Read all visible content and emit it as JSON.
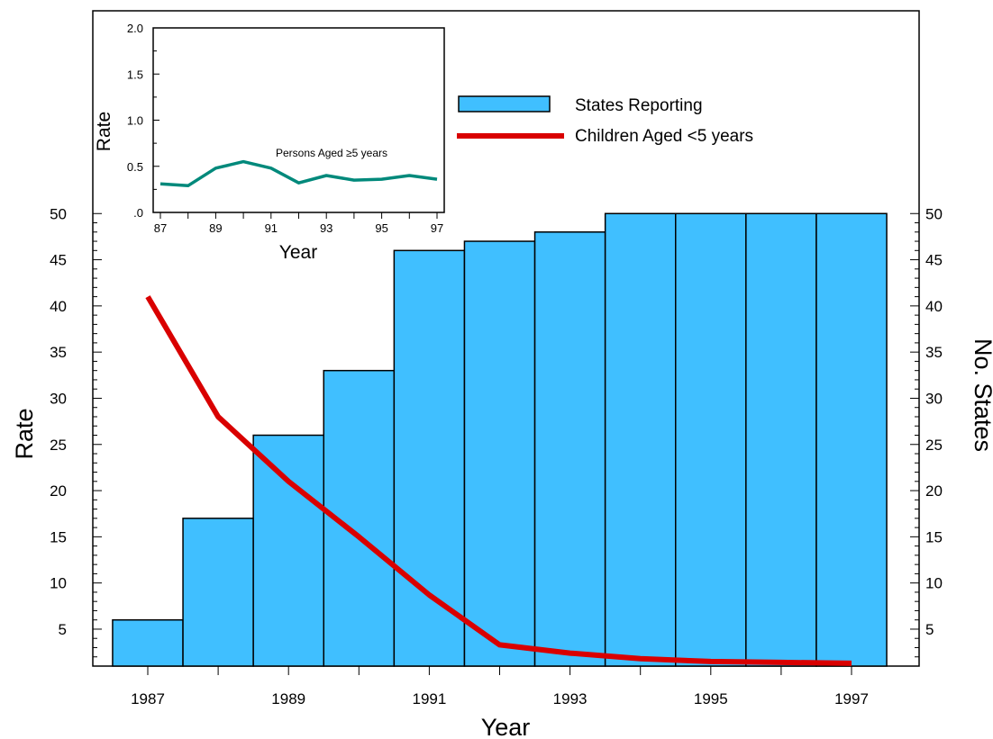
{
  "chart_data": [
    {
      "type": "bar",
      "x": [
        1987,
        1988,
        1989,
        1990,
        1991,
        1992,
        1993,
        1994,
        1995,
        1996,
        1997
      ],
      "xticks": [
        1987,
        1989,
        1991,
        1993,
        1995,
        1997
      ],
      "xtick_labels": [
        "1987",
        "1989",
        "1991",
        "1993",
        "1995",
        "1997"
      ],
      "xlabel": "Year",
      "ylabel_left": "Rate",
      "ylabel_right": "No. States",
      "ylim": [
        1,
        51
      ],
      "yticks": [
        5,
        10,
        15,
        20,
        25,
        30,
        35,
        40,
        45,
        50
      ],
      "ytick_labels": [
        "5",
        "10",
        "15",
        "20",
        "25",
        "30",
        "35",
        "40",
        "45",
        "50"
      ],
      "grid": false,
      "legend_position": "top-right",
      "series": [
        {
          "name": "States Reporting",
          "kind": "bar",
          "axis": "right",
          "color": "#40bfff",
          "values": [
            6,
            17,
            26,
            33,
            46,
            47,
            48,
            50,
            50,
            50,
            50
          ]
        },
        {
          "name": "Children Aged <5 years",
          "kind": "line",
          "axis": "left",
          "color": "#d90000",
          "values": [
            41,
            28,
            21,
            15,
            8.7,
            3.3,
            2.4,
            1.8,
            1.5,
            1.4,
            1.3
          ]
        }
      ]
    },
    {
      "type": "line",
      "x": [
        87,
        88,
        89,
        90,
        91,
        92,
        93,
        94,
        95,
        96,
        97
      ],
      "xticks": [
        87,
        89,
        91,
        93,
        95,
        97
      ],
      "xtick_labels": [
        "87",
        "89",
        "91",
        "93",
        "95",
        "97"
      ],
      "xlabel": "Year",
      "ylabel": "Rate",
      "ylim": [
        0,
        2.0
      ],
      "yticks": [
        0,
        0.5,
        1.0,
        1.5,
        2.0
      ],
      "ytick_labels": [
        ".0",
        "0.5",
        "1.0",
        "1.5",
        "2.0"
      ],
      "annotation": "Persons Aged ≥5 years",
      "series": [
        {
          "kind": "line",
          "color": "#00897b",
          "values": [
            0.31,
            0.29,
            0.48,
            0.55,
            0.48,
            0.32,
            0.4,
            0.35,
            0.36,
            0.4,
            0.36
          ]
        }
      ]
    }
  ]
}
